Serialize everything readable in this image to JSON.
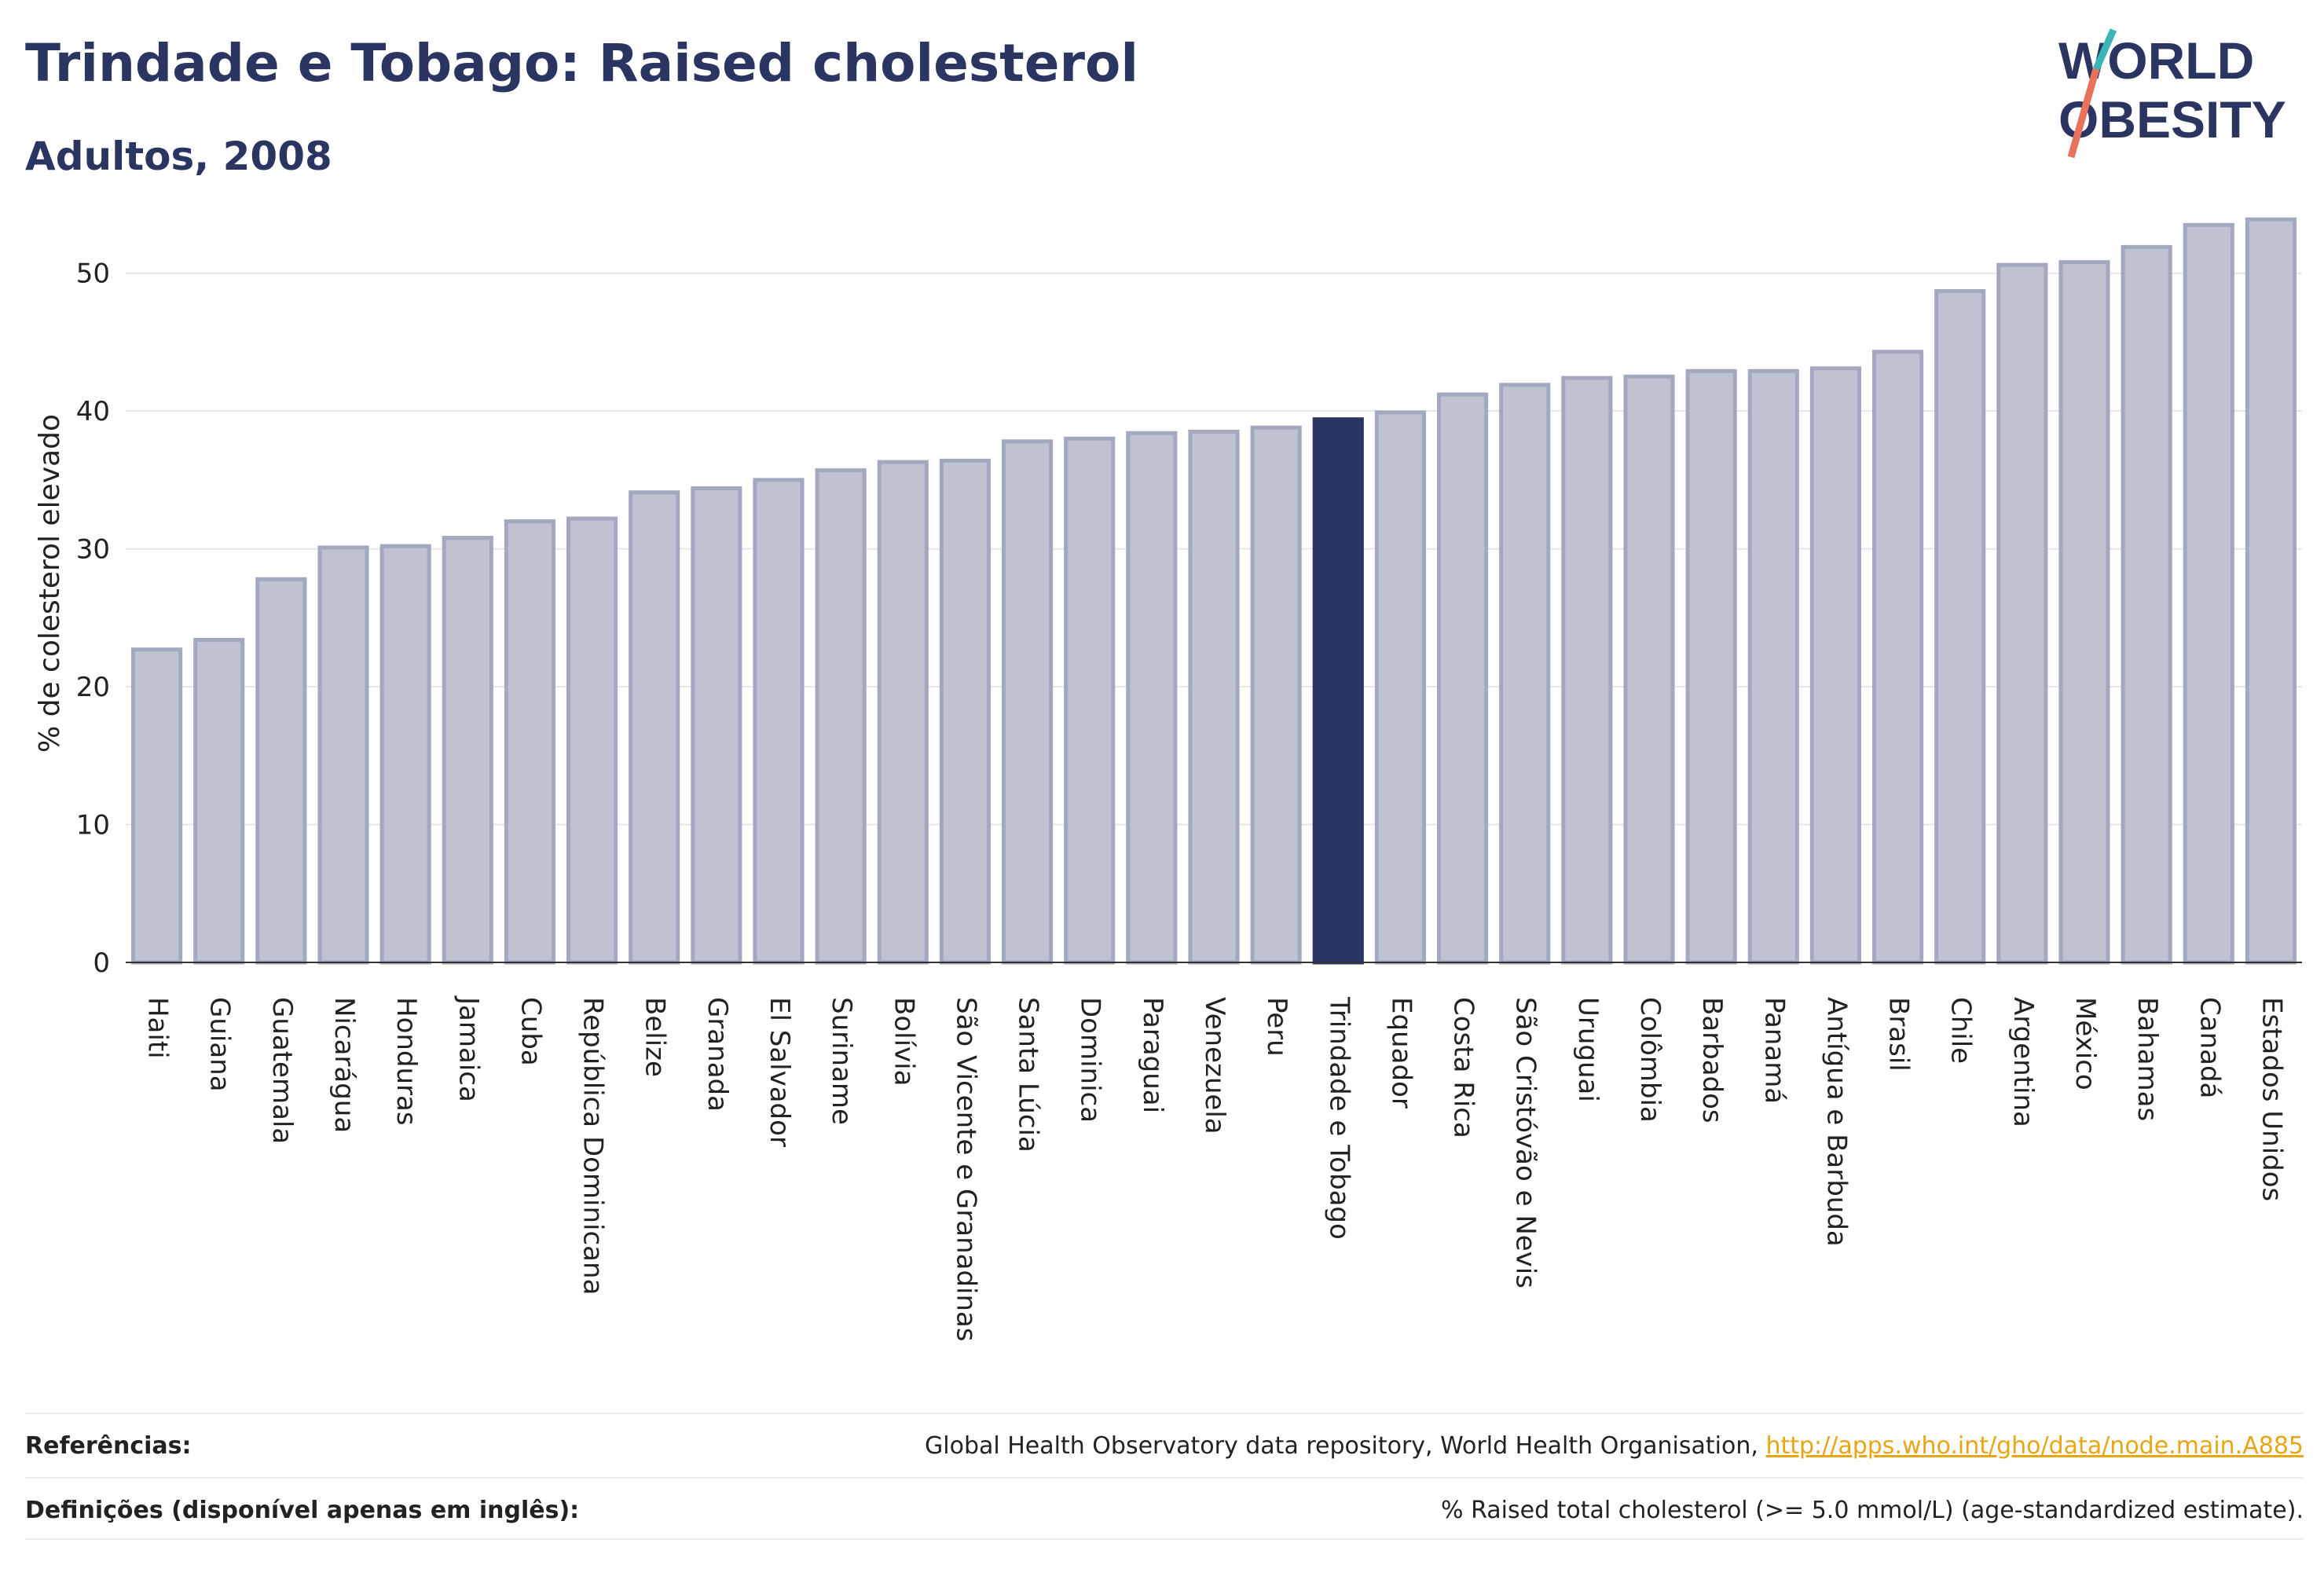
{
  "header": {
    "title": "Trindade e Tobago: Raised cholesterol",
    "subtitle": "Adultos, 2008"
  },
  "logo": {
    "line1": "WORLD",
    "line2": "OBESITY",
    "accent": "#e8735a",
    "accent2": "#3ab5b8",
    "color": "#2b3561"
  },
  "colors": {
    "bar": "#bfc2d0",
    "bar_border": "#a3a8bf",
    "highlight": "#2b3561",
    "grid": "#e6e6e6"
  },
  "chart_data": {
    "type": "bar",
    "title": "Trindade e Tobago: Raised cholesterol",
    "subtitle": "Adultos, 2008",
    "ylabel": "% de colesterol elevado",
    "xlabel": "",
    "ylim": [
      0,
      55
    ],
    "yticks": [
      0,
      10,
      20,
      30,
      40,
      50
    ],
    "grid": true,
    "highlight": "Trindade e Tobago",
    "categories": [
      "Haiti",
      "Guiana",
      "Guatemala",
      "Nicarágua",
      "Honduras",
      "Jamaica",
      "Cuba",
      "República Dominicana",
      "Belize",
      "Granada",
      "El Salvador",
      "Suriname",
      "Bolívia",
      "São Vicente e Granadinas",
      "Santa Lúcia",
      "Dominica",
      "Paraguai",
      "Venezuela",
      "Peru",
      "Trindade e Tobago",
      "Equador",
      "Costa Rica",
      "São Cristóvão e Nevis",
      "Uruguai",
      "Colômbia",
      "Barbados",
      "Panamá",
      "Antígua e Barbuda",
      "Brasil",
      "Chile",
      "Argentina",
      "México",
      "Bahamas",
      "Canadá",
      "Estados Unidos"
    ],
    "values": [
      22.7,
      23.4,
      27.8,
      30.1,
      30.2,
      30.8,
      32.0,
      32.2,
      34.1,
      34.4,
      35.0,
      35.7,
      36.3,
      36.4,
      37.8,
      38.0,
      38.4,
      38.5,
      38.8,
      39.4,
      39.9,
      41.2,
      41.9,
      42.4,
      42.5,
      42.9,
      42.9,
      43.1,
      44.3,
      48.7,
      50.6,
      50.8,
      51.9,
      53.5,
      53.9
    ]
  },
  "footer": {
    "references_label": "Referências:",
    "references_text": "Global Health Observatory data repository, World Health Organisation, ",
    "references_link": "http://apps.who.int/gho/data/node.main.A885",
    "definitions_label": "Definições (disponível apenas em inglês):",
    "definitions_text": "% Raised total cholesterol (>= 5.0 mmol/L) (age-standardized estimate)."
  }
}
